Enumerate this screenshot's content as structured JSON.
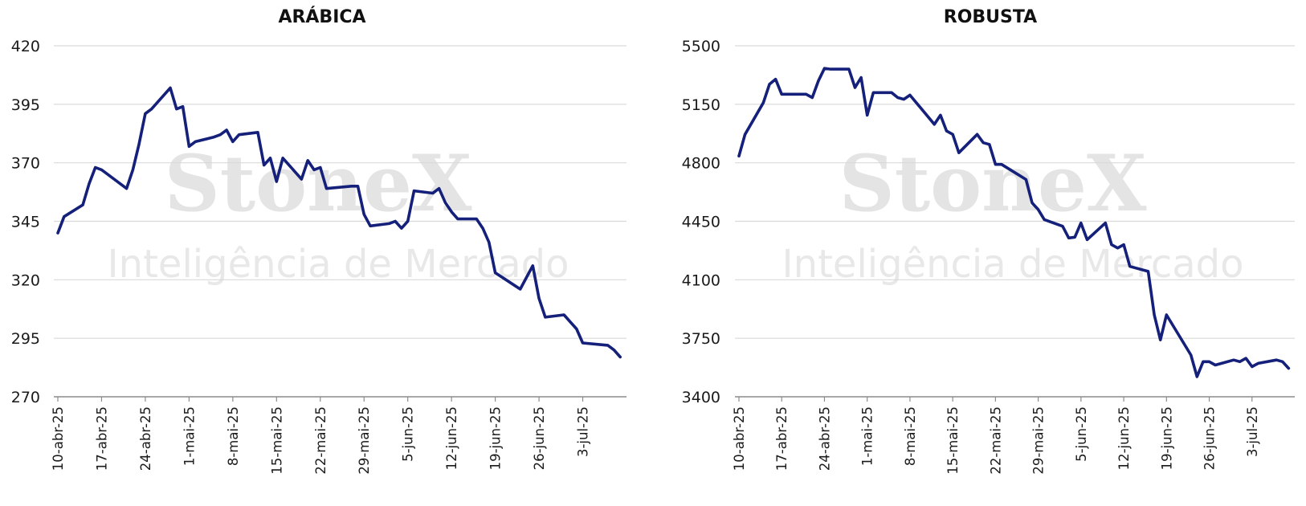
{
  "watermark": {
    "brand": "StoneX",
    "subtitle": "Inteligência de Mercado"
  },
  "chart_data": [
    {
      "type": "line",
      "title": "ARÁBICA",
      "ylim": [
        270,
        420
      ],
      "yticks": [
        270,
        295,
        320,
        345,
        370,
        395,
        420
      ],
      "xlim": [
        "2025-04-10",
        "2025-07-10"
      ],
      "xticks": [
        {
          "date": "2025-04-10",
          "label": "10-abr-25"
        },
        {
          "date": "2025-04-17",
          "label": "17-abr-25"
        },
        {
          "date": "2025-04-24",
          "label": "24-abr-25"
        },
        {
          "date": "2025-05-01",
          "label": "1-mai-25"
        },
        {
          "date": "2025-05-08",
          "label": "8-mai-25"
        },
        {
          "date": "2025-05-15",
          "label": "15-mai-25"
        },
        {
          "date": "2025-05-22",
          "label": "22-mai-25"
        },
        {
          "date": "2025-05-29",
          "label": "29-mai-25"
        },
        {
          "date": "2025-06-05",
          "label": "5-jun-25"
        },
        {
          "date": "2025-06-12",
          "label": "12-jun-25"
        },
        {
          "date": "2025-06-19",
          "label": "19-jun-25"
        },
        {
          "date": "2025-06-26",
          "label": "26-jun-25"
        },
        {
          "date": "2025-07-03",
          "label": "3-jul-25"
        }
      ],
      "grid": true,
      "color": "#14207a",
      "series": [
        {
          "x": [
            "2025-04-10",
            "2025-04-11",
            "2025-04-14",
            "2025-04-15",
            "2025-04-16",
            "2025-04-17",
            "2025-04-21",
            "2025-04-22",
            "2025-04-23",
            "2025-04-24",
            "2025-04-25",
            "2025-04-28",
            "2025-04-29",
            "2025-04-30",
            "2025-05-01",
            "2025-05-02",
            "2025-05-05",
            "2025-05-06",
            "2025-05-07",
            "2025-05-08",
            "2025-05-09",
            "2025-05-12",
            "2025-05-13",
            "2025-05-14",
            "2025-05-15",
            "2025-05-16",
            "2025-05-19",
            "2025-05-20",
            "2025-05-21",
            "2025-05-22",
            "2025-05-23",
            "2025-05-27",
            "2025-05-28",
            "2025-05-29",
            "2025-05-30",
            "2025-06-02",
            "2025-06-03",
            "2025-06-04",
            "2025-06-05",
            "2025-06-06",
            "2025-06-09",
            "2025-06-10",
            "2025-06-11",
            "2025-06-12",
            "2025-06-13",
            "2025-06-16",
            "2025-06-17",
            "2025-06-18",
            "2025-06-19",
            "2025-06-23",
            "2025-06-24",
            "2025-06-25",
            "2025-06-26",
            "2025-06-27",
            "2025-06-30",
            "2025-07-01",
            "2025-07-02",
            "2025-07-03",
            "2025-07-07",
            "2025-07-08",
            "2025-07-09"
          ],
          "y": [
            340,
            347,
            352,
            361,
            368,
            367,
            359,
            367,
            378,
            391,
            393,
            402,
            393,
            394,
            377,
            379,
            381,
            382,
            384,
            379,
            382,
            383,
            369,
            372,
            362,
            372,
            363,
            371,
            367,
            368,
            359,
            360,
            360,
            348,
            343,
            344,
            345,
            342,
            345,
            358,
            357,
            359,
            353,
            349,
            346,
            346,
            342,
            336,
            323,
            316,
            321,
            326,
            312,
            304,
            305,
            302,
            299,
            293,
            292,
            290,
            287
          ]
        }
      ]
    },
    {
      "type": "line",
      "title": "ROBUSTA",
      "ylim": [
        3400,
        5500
      ],
      "yticks": [
        3400,
        3750,
        4100,
        4450,
        4800,
        5150,
        5500
      ],
      "xlim": [
        "2025-04-10",
        "2025-07-10"
      ],
      "xticks": [
        {
          "date": "2025-04-10",
          "label": "10-abr-25"
        },
        {
          "date": "2025-04-17",
          "label": "17-abr-25"
        },
        {
          "date": "2025-04-24",
          "label": "24-abr-25"
        },
        {
          "date": "2025-05-01",
          "label": "1-mai-25"
        },
        {
          "date": "2025-05-08",
          "label": "8-mai-25"
        },
        {
          "date": "2025-05-15",
          "label": "15-mai-25"
        },
        {
          "date": "2025-05-22",
          "label": "22-mai-25"
        },
        {
          "date": "2025-05-29",
          "label": "29-mai-25"
        },
        {
          "date": "2025-06-05",
          "label": "5-jun-25"
        },
        {
          "date": "2025-06-12",
          "label": "12-jun-25"
        },
        {
          "date": "2025-06-19",
          "label": "19-jun-25"
        },
        {
          "date": "2025-06-26",
          "label": "26-jun-25"
        },
        {
          "date": "2025-07-03",
          "label": "3-jul-25"
        }
      ],
      "grid": true,
      "color": "#14207a",
      "series": [
        {
          "x": [
            "2025-04-10",
            "2025-04-11",
            "2025-04-14",
            "2025-04-15",
            "2025-04-16",
            "2025-04-17",
            "2025-04-18",
            "2025-04-21",
            "2025-04-22",
            "2025-04-23",
            "2025-04-24",
            "2025-04-25",
            "2025-04-28",
            "2025-04-29",
            "2025-04-30",
            "2025-05-01",
            "2025-05-02",
            "2025-05-05",
            "2025-05-06",
            "2025-05-07",
            "2025-05-08",
            "2025-05-12",
            "2025-05-13",
            "2025-05-14",
            "2025-05-15",
            "2025-05-16",
            "2025-05-19",
            "2025-05-20",
            "2025-05-21",
            "2025-05-22",
            "2025-05-23",
            "2025-05-27",
            "2025-05-28",
            "2025-05-29",
            "2025-05-30",
            "2025-06-02",
            "2025-06-03",
            "2025-06-04",
            "2025-06-05",
            "2025-06-06",
            "2025-06-09",
            "2025-06-10",
            "2025-06-11",
            "2025-06-12",
            "2025-06-13",
            "2025-06-16",
            "2025-06-17",
            "2025-06-18",
            "2025-06-19",
            "2025-06-23",
            "2025-06-24",
            "2025-06-25",
            "2025-06-26",
            "2025-06-27",
            "2025-06-30",
            "2025-07-01",
            "2025-07-02",
            "2025-07-03",
            "2025-07-04",
            "2025-07-07",
            "2025-07-08",
            "2025-07-09"
          ],
          "y": [
            4840,
            4970,
            5160,
            5270,
            5300,
            5210,
            5210,
            5210,
            5190,
            5290,
            5365,
            5360,
            5360,
            5250,
            5310,
            5085,
            5220,
            5220,
            5190,
            5180,
            5205,
            5030,
            5085,
            4990,
            4970,
            4860,
            4970,
            4920,
            4910,
            4790,
            4790,
            4700,
            4560,
            4520,
            4460,
            4420,
            4350,
            4355,
            4440,
            4340,
            4440,
            4310,
            4290,
            4310,
            4180,
            4150,
            3890,
            3740,
            3890,
            3650,
            3520,
            3610,
            3610,
            3590,
            3620,
            3610,
            3630,
            3580,
            3600,
            3620,
            3610,
            3570
          ]
        }
      ]
    }
  ]
}
